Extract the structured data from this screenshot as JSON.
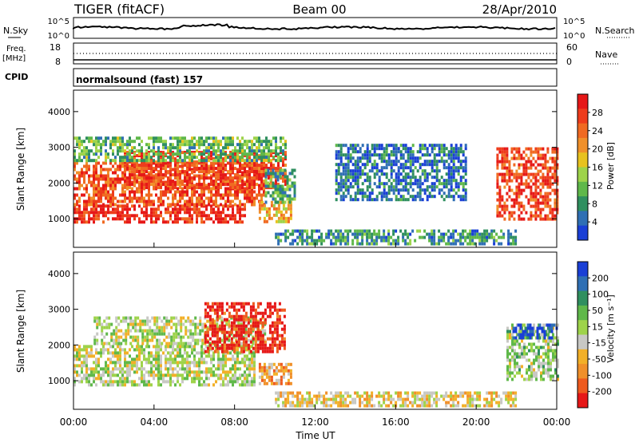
{
  "header": {
    "radar": "TIGER (fitACF)",
    "beam": "Beam 00",
    "date": "28/Apr/2010"
  },
  "panels": {
    "nsky": {
      "label": "N.Sky",
      "ticks": [
        "10^5",
        "10^0"
      ],
      "right_label": "N.Search",
      "right_ticks": [
        "10^5",
        "10^0"
      ]
    },
    "freq": {
      "label_top": "Freq.",
      "label_bottom": "[MHz]",
      "ticks": [
        "18",
        "8"
      ],
      "right_label": "Nave",
      "right_ticks": [
        "60",
        "0"
      ]
    },
    "cpid": {
      "label": "CPID",
      "value": "normalsound (fast) 157"
    }
  },
  "colors": {
    "power": [
      "#1a3fd6",
      "#2f6fb4",
      "#2f8f5f",
      "#5fb84a",
      "#9ed34a",
      "#e8c21f",
      "#f0902a",
      "#f06a22",
      "#ee3c1c",
      "#e61818"
    ],
    "velocity": [
      "#1a3fd6",
      "#2f6fb4",
      "#2f8f5f",
      "#5fb84a",
      "#9ed34a",
      "#c8c8c4",
      "#f2b028",
      "#f0902a",
      "#ee5a1e",
      "#e61818"
    ]
  },
  "chart_data": [
    {
      "type": "heatmap",
      "name": "power",
      "ylabel": "Slant Range [km]",
      "yticks": [
        "1000",
        "2000",
        "3000",
        "4000"
      ],
      "ylim": [
        200,
        4600
      ],
      "xlim": [
        0,
        24
      ],
      "colorbar_label": "Power [dB]",
      "colorbar_ticks": [
        "4",
        "8",
        "12",
        "16",
        "20",
        "24",
        "28"
      ],
      "colorbar_range": [
        0,
        32
      ],
      "regions": [
        {
          "t": [
            0.0,
            8.5
          ],
          "r": [
            900,
            1400
          ],
          "level": 0.9
        },
        {
          "t": [
            0.0,
            9.5
          ],
          "r": [
            1400,
            2600
          ],
          "level": 0.8
        },
        {
          "t": [
            2.5,
            10.5
          ],
          "r": [
            1900,
            2900
          ],
          "level": 0.85
        },
        {
          "t": [
            0.0,
            10.5
          ],
          "r": [
            2600,
            3300
          ],
          "level": 0.35
        },
        {
          "t": [
            9.2,
            10.8
          ],
          "r": [
            900,
            1500
          ],
          "level": 0.6
        },
        {
          "t": [
            9.5,
            11.0
          ],
          "r": [
            1500,
            2400
          ],
          "level": 0.3
        },
        {
          "t": [
            10.0,
            22.0
          ],
          "r": [
            300,
            700
          ],
          "level": 0.25
        },
        {
          "t": [
            21.0,
            24.0
          ],
          "r": [
            1000,
            3000
          ],
          "level": 0.85
        },
        {
          "t": [
            13.0,
            19.5
          ],
          "r": [
            1500,
            3100
          ],
          "level": 0.15
        }
      ]
    },
    {
      "type": "heatmap",
      "name": "velocity",
      "xlabel": "Time UT",
      "xticks": [
        "00:00",
        "04:00",
        "08:00",
        "12:00",
        "16:00",
        "20:00",
        "00:00"
      ],
      "ylabel": "Slant Range [km]",
      "yticks": [
        "1000",
        "2000",
        "3000",
        "4000"
      ],
      "ylim": [
        200,
        4600
      ],
      "xlim": [
        0,
        24
      ],
      "colorbar_label": "Velocity [m s⁻¹]",
      "colorbar_ticks": [
        "200",
        "100",
        "50",
        "15",
        "-15",
        "-50",
        "-100",
        "-200"
      ],
      "colorbar_range": [
        -250,
        250
      ],
      "regions": [
        {
          "t": [
            0.0,
            9.0
          ],
          "r": [
            900,
            2000
          ],
          "level": 0.5
        },
        {
          "t": [
            1.0,
            9.5
          ],
          "r": [
            2000,
            2800
          ],
          "level": 0.5
        },
        {
          "t": [
            6.5,
            10.5
          ],
          "r": [
            1800,
            3200
          ],
          "level": 0.95
        },
        {
          "t": [
            9.2,
            10.8
          ],
          "r": [
            900,
            1500
          ],
          "level": 0.7
        },
        {
          "t": [
            10.0,
            22.0
          ],
          "r": [
            300,
            700
          ],
          "level": 0.6
        },
        {
          "t": [
            21.5,
            24.0
          ],
          "r": [
            1000,
            2600
          ],
          "level": 0.45
        },
        {
          "t": [
            21.8,
            24.0
          ],
          "r": [
            2200,
            2600
          ],
          "level": 0.05
        }
      ]
    }
  ]
}
